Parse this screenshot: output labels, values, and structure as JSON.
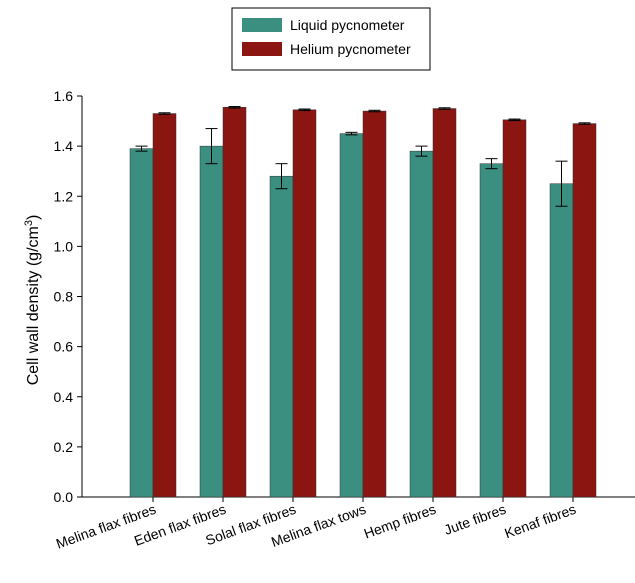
{
  "chart_data": {
    "type": "bar",
    "y_label": [
      "Cell wall density (g/cm",
      "3",
      ")"
    ],
    "categories": [
      "Melina flax fibres",
      "Eden flax fibres",
      "Solal flax fibres",
      "Melina flax tows",
      "Hemp fibres",
      "Jute fibres",
      "Kenaf fibres"
    ],
    "series": [
      {
        "name": "Liquid pycnometer",
        "color": "#3a8f80",
        "values": [
          1.39,
          1.4,
          1.28,
          1.45,
          1.38,
          1.33,
          1.25
        ],
        "errors": [
          0.01,
          0.07,
          0.05,
          0.005,
          0.02,
          0.02,
          0.09
        ]
      },
      {
        "name": "Helium pycnometer",
        "color": "#8b1510",
        "values": [
          1.53,
          1.555,
          1.545,
          1.54,
          1.55,
          1.505,
          1.49
        ],
        "errors": [
          0.003,
          0.003,
          0.003,
          0.003,
          0.003,
          0.003,
          0.003
        ]
      }
    ],
    "ylim": [
      0,
      1.6
    ],
    "yticks": [
      {
        "value": 0,
        "label": "0.0"
      },
      {
        "value": 0.2,
        "label": "0.2"
      },
      {
        "value": 0.4,
        "label": "0.4"
      },
      {
        "value": 0.6,
        "label": "0.6"
      },
      {
        "value": 0.8,
        "label": "0.8"
      },
      {
        "value": 1.0,
        "label": "1.0"
      },
      {
        "value": 1.2,
        "label": "1.2"
      },
      {
        "value": 1.4,
        "label": "1.4"
      },
      {
        "value": 1.6,
        "label": "1.6"
      }
    ],
    "legend": "top-center"
  }
}
